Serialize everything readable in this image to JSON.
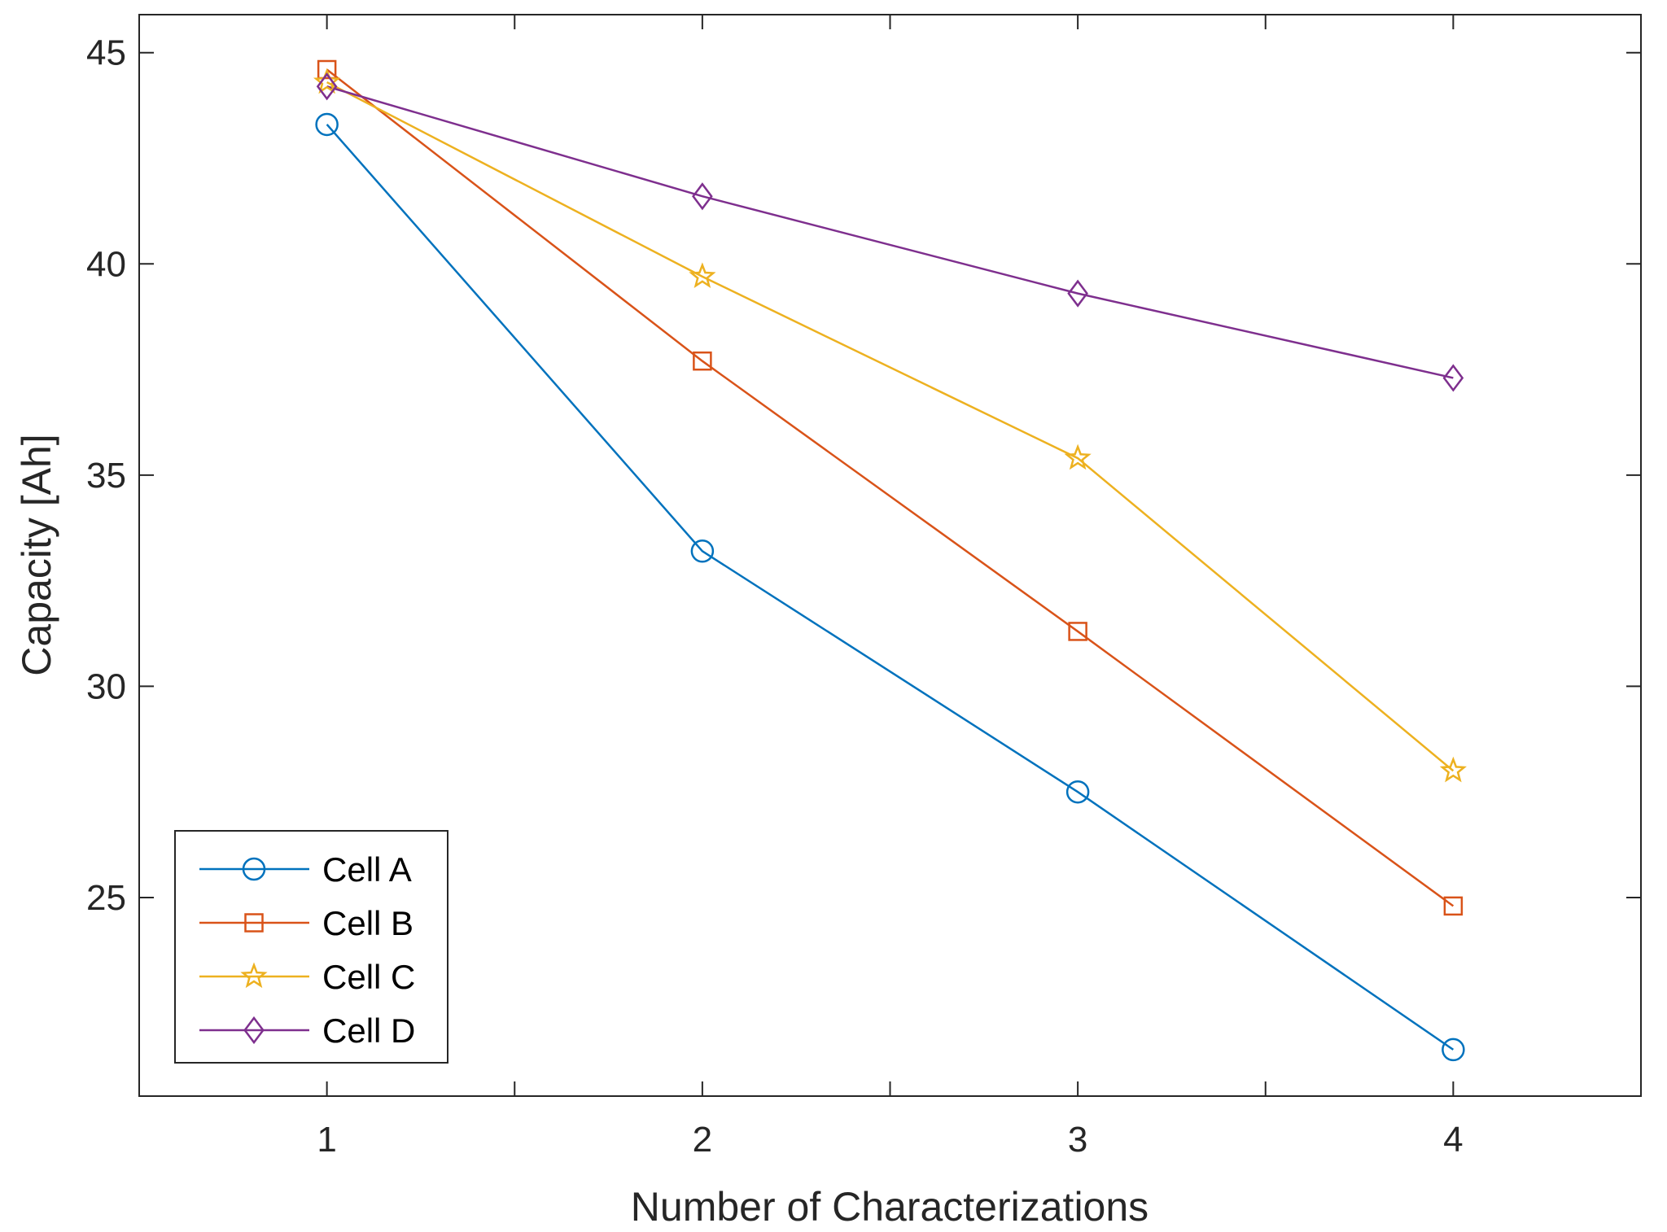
{
  "chart_data": {
    "type": "line",
    "title": "",
    "xlabel": "Number of Characterizations",
    "ylabel": "Capacity [Ah]",
    "x": [
      1,
      2,
      3,
      4
    ],
    "xlim": [
      0.5,
      4.5
    ],
    "ylim": [
      20.3,
      45.9
    ],
    "xticks": [
      1,
      2,
      3,
      4
    ],
    "xtick_labels": [
      "1",
      "2",
      "3",
      "4"
    ],
    "yticks": [
      25,
      30,
      35,
      40,
      45
    ],
    "ytick_labels": [
      "25",
      "30",
      "35",
      "40",
      "45"
    ],
    "grid": false,
    "legend_position": "bottom-left",
    "series": [
      {
        "name": "Cell A",
        "values": [
          43.3,
          33.2,
          27.5,
          21.4
        ],
        "color": "#0072BD",
        "marker": "circle"
      },
      {
        "name": "Cell B",
        "values": [
          44.6,
          37.7,
          31.3,
          24.8
        ],
        "color": "#D95319",
        "marker": "square"
      },
      {
        "name": "Cell C",
        "values": [
          44.3,
          39.7,
          35.4,
          28.0
        ],
        "color": "#EDB120",
        "marker": "star"
      },
      {
        "name": "Cell D",
        "values": [
          44.2,
          41.6,
          39.3,
          37.3
        ],
        "color": "#7E2F8E",
        "marker": "diamond"
      }
    ]
  }
}
